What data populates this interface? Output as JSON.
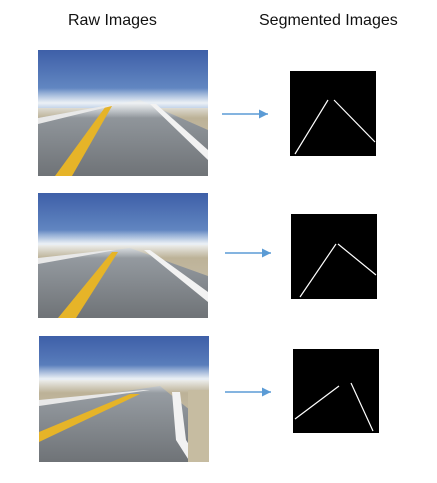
{
  "headers": {
    "raw": "Raw Images",
    "segmented": "Segmented Images"
  },
  "colors": {
    "arrow": "#5b9bd5",
    "segment_bg": "#000000",
    "segment_line": "#ffffff",
    "road_yellow": "#e6b428"
  },
  "rows": [
    {
      "id": "row-1"
    },
    {
      "id": "row-2"
    },
    {
      "id": "row-3"
    }
  ]
}
